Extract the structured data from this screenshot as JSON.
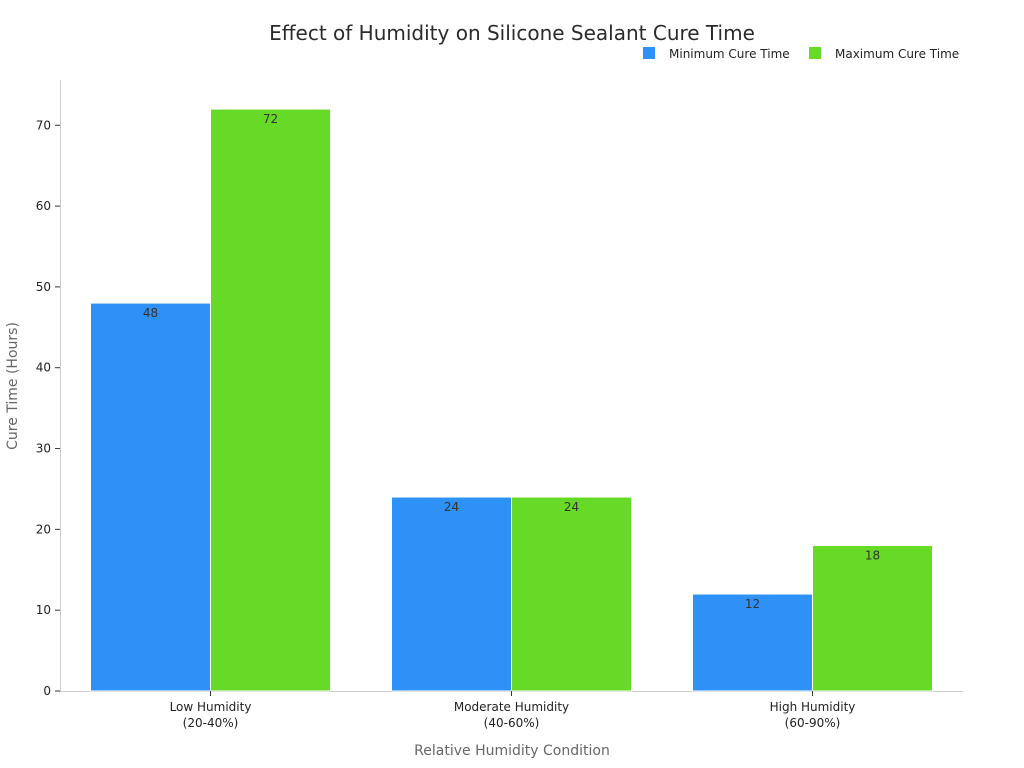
{
  "chart_data": {
    "type": "bar",
    "title": "Effect of Humidity on Silicone Sealant Cure Time",
    "xlabel": "Relative Humidity Condition",
    "ylabel": "Cure Time (Hours)",
    "categories": [
      [
        "Low Humidity",
        "(20-40%)"
      ],
      [
        "Moderate Humidity",
        "(40-60%)"
      ],
      [
        "High Humidity",
        "(60-90%)"
      ]
    ],
    "series": [
      {
        "name": "Minimum Cure Time",
        "color": "#2e91f5",
        "values": [
          48,
          24,
          12
        ]
      },
      {
        "name": "Maximum Cure Time",
        "color": "#66da26",
        "values": [
          72,
          24,
          18
        ]
      }
    ],
    "ylim": [
      0,
      75.6
    ],
    "yticks": [
      0,
      10,
      20,
      30,
      40,
      50,
      60,
      70
    ],
    "grid": false,
    "legend_position": "top-right"
  }
}
